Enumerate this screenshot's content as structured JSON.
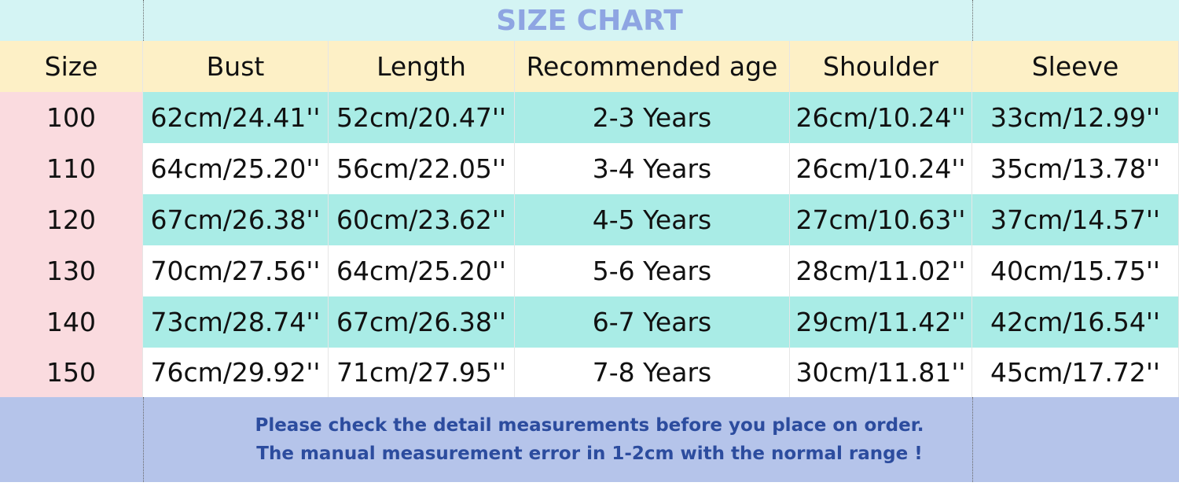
{
  "title": "SIZE CHART",
  "table": {
    "header": [
      "Size",
      "Bust",
      "Length",
      "Recommended age",
      "Shoulder",
      "Sleeve"
    ],
    "rows": [
      [
        "100",
        "62cm/24.41''",
        "52cm/20.47''",
        "2-3 Years",
        "26cm/10.24''",
        "33cm/12.99''"
      ],
      [
        "110",
        "64cm/25.20''",
        "56cm/22.05''",
        "3-4 Years",
        "26cm/10.24''",
        "35cm/13.78''"
      ],
      [
        "120",
        "67cm/26.38''",
        "60cm/23.62''",
        "4-5 Years",
        "27cm/10.63''",
        "37cm/14.57''"
      ],
      [
        "130",
        "70cm/27.56''",
        "64cm/25.20''",
        "5-6 Years",
        "28cm/11.02''",
        "40cm/15.75''"
      ],
      [
        "140",
        "73cm/28.74''",
        "67cm/26.38''",
        "6-7 Years",
        "29cm/11.42''",
        "42cm/16.54''"
      ],
      [
        "150",
        "76cm/29.92''",
        "71cm/27.95''",
        "7-8 Years",
        "30cm/11.81''",
        "45cm/17.72''"
      ]
    ]
  },
  "notes": [
    "Please check the detail measurements before you place on order.",
    "The manual measurement error in 1-2cm with the normal range !"
  ]
}
